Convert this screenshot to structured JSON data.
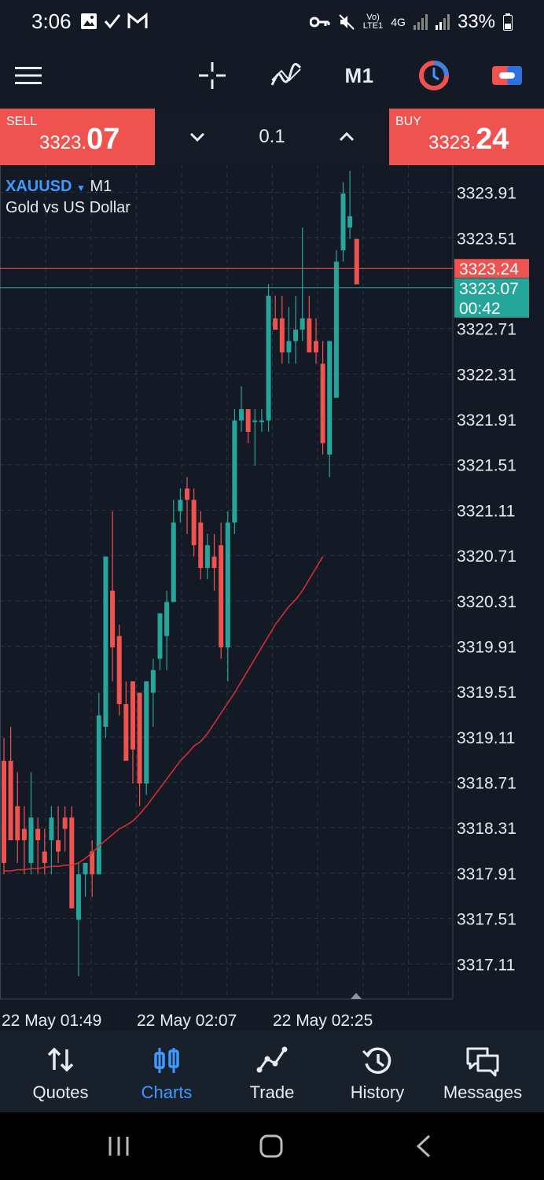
{
  "status": {
    "time": "3:06",
    "battery": "33%",
    "network_top": "Vo)",
    "network_bottom": "LTE1",
    "gen": "4G"
  },
  "toolbar": {
    "timeframe": "M1",
    "icons": [
      "menu-icon",
      "crosshair-icon",
      "indicators-icon",
      "timeframe",
      "one-click-trading-icon",
      "account-icon"
    ]
  },
  "trade": {
    "sell_label": "SELL",
    "sell_price_small": "3323.",
    "sell_price_big": "07",
    "buy_label": "BUY",
    "buy_price_small": "3323.",
    "buy_price_big": "24",
    "lot": "0.1"
  },
  "chart_header": {
    "symbol": "XAUUSD",
    "timeframe": "M1",
    "description": "Gold vs US Dollar"
  },
  "chart_data": {
    "type": "candlestick",
    "price_labels": [
      "3323.91",
      "3323.51",
      "3322.71",
      "3322.31",
      "3321.91",
      "3321.51",
      "3321.11",
      "3320.71",
      "3320.31",
      "3319.91",
      "3319.51",
      "3319.11",
      "3318.71",
      "3318.31",
      "3317.91",
      "3317.51",
      "3317.11"
    ],
    "ask_line": "3323.24",
    "bid_line": "3323.07",
    "countdown": "00:42",
    "time_labels": [
      "22 May 01:49",
      "22 May 02:07",
      "22 May 02:25"
    ],
    "ylim": [
      3316.8,
      3324.15
    ],
    "colors": {
      "up": "#26a69a",
      "down": "#ef5350",
      "ma": "#d32f2f",
      "ask": "#ef5350",
      "bid": "#26a69a"
    },
    "candles": [
      [
        3318.9,
        3319.1,
        3317.9,
        3318.0
      ],
      [
        3318.9,
        3319.2,
        3318.2,
        3318.2
      ],
      [
        3318.5,
        3318.8,
        3318.0,
        3318.2
      ],
      [
        3318.3,
        3318.5,
        3317.9,
        3318.2
      ],
      [
        3318.0,
        3318.8,
        3317.9,
        3318.4
      ],
      [
        3318.3,
        3318.4,
        3317.9,
        3318.2
      ],
      [
        3318.1,
        3318.3,
        3317.9,
        3318.0
      ],
      [
        3318.2,
        3318.5,
        3317.9,
        3318.4
      ],
      [
        3318.2,
        3318.5,
        3318.0,
        3318.1
      ],
      [
        3318.4,
        3318.5,
        3318.1,
        3318.3
      ],
      [
        3318.4,
        3318.5,
        3317.6,
        3317.6
      ],
      [
        3317.5,
        3318.0,
        3317.0,
        3317.9
      ],
      [
        3317.9,
        3318.0,
        3317.7,
        3318.0
      ],
      [
        3318.1,
        3318.2,
        3317.7,
        3317.9
      ],
      [
        3317.9,
        3319.5,
        3317.9,
        3319.3
      ],
      [
        3319.2,
        3320.7,
        3319.1,
        3320.7
      ],
      [
        3320.4,
        3321.1,
        3319.6,
        3319.9
      ],
      [
        3320.0,
        3320.1,
        3319.3,
        3319.4
      ],
      [
        3319.4,
        3319.6,
        3318.9,
        3318.9
      ],
      [
        3319.6,
        3319.6,
        3318.7,
        3319.0
      ],
      [
        3319.5,
        3319.5,
        3318.5,
        3318.7
      ],
      [
        3318.7,
        3319.6,
        3318.6,
        3319.6
      ],
      [
        3319.5,
        3319.8,
        3319.2,
        3319.7
      ],
      [
        3319.8,
        3320.2,
        3319.7,
        3320.2
      ],
      [
        3320.0,
        3320.4,
        3319.7,
        3320.3
      ],
      [
        3320.3,
        3321.2,
        3320.3,
        3321.0
      ],
      [
        3321.1,
        3321.3,
        3321.0,
        3321.2
      ],
      [
        3321.3,
        3321.4,
        3320.9,
        3321.2
      ],
      [
        3321.2,
        3321.3,
        3320.7,
        3320.8
      ],
      [
        3321.0,
        3321.1,
        3320.5,
        3320.6
      ],
      [
        3320.6,
        3320.9,
        3320.5,
        3320.8
      ],
      [
        3320.7,
        3320.9,
        3320.4,
        3320.6
      ],
      [
        3320.8,
        3321.0,
        3319.8,
        3319.9
      ],
      [
        3319.9,
        3321.1,
        3319.6,
        3321.0
      ],
      [
        3321.0,
        3322.0,
        3320.9,
        3321.9
      ],
      [
        3321.9,
        3322.2,
        3321.8,
        3322.0
      ],
      [
        3322.0,
        3322.0,
        3321.7,
        3321.8
      ],
      [
        3321.9,
        3322.0,
        3321.5,
        3321.9
      ],
      [
        3321.9,
        3322.0,
        3321.8,
        3321.9
      ],
      [
        3321.9,
        3323.1,
        3321.8,
        3323.0
      ],
      [
        3322.8,
        3323.0,
        3322.7,
        3322.7
      ],
      [
        3322.8,
        3323.0,
        3322.4,
        3322.5
      ],
      [
        3322.5,
        3322.9,
        3322.4,
        3322.6
      ],
      [
        3322.6,
        3323.0,
        3322.4,
        3322.7
      ],
      [
        3322.7,
        3323.6,
        3322.6,
        3322.8
      ],
      [
        3322.8,
        3323.0,
        3322.5,
        3322.5
      ],
      [
        3322.6,
        3322.8,
        3322.4,
        3322.5
      ],
      [
        3322.4,
        3322.6,
        3321.6,
        3321.7
      ],
      [
        3321.6,
        3322.6,
        3321.4,
        3322.6
      ],
      [
        3322.1,
        3323.4,
        3322.1,
        3323.3
      ],
      [
        3323.4,
        3324.0,
        3323.3,
        3323.9
      ],
      [
        3323.6,
        3324.1,
        3323.5,
        3323.7
      ],
      [
        3323.5,
        3323.5,
        3323.1,
        3323.1
      ]
    ],
    "ma": [
      3317.93,
      3317.93,
      3317.94,
      3317.94,
      3317.95,
      3317.95,
      3317.96,
      3317.97,
      3317.97,
      3317.98,
      3317.98,
      3318.0,
      3318.04,
      3318.09,
      3318.15,
      3318.2,
      3318.25,
      3318.3,
      3318.33,
      3318.37,
      3318.43,
      3318.5,
      3318.58,
      3318.66,
      3318.74,
      3318.82,
      3318.9,
      3318.96,
      3319.03,
      3319.07,
      3319.14,
      3319.23,
      3319.32,
      3319.41,
      3319.5,
      3319.6,
      3319.7,
      3319.8,
      3319.9,
      3320.0,
      3320.1,
      3320.18,
      3320.26,
      3320.32,
      3320.4,
      3320.5,
      3320.6,
      3320.7
    ]
  },
  "nav": {
    "items": [
      {
        "label": "Quotes",
        "icon": "quotes-icon"
      },
      {
        "label": "Charts",
        "icon": "charts-icon"
      },
      {
        "label": "Trade",
        "icon": "trade-icon"
      },
      {
        "label": "History",
        "icon": "history-icon"
      },
      {
        "label": "Messages",
        "icon": "messages-icon"
      }
    ],
    "active": "Charts"
  }
}
